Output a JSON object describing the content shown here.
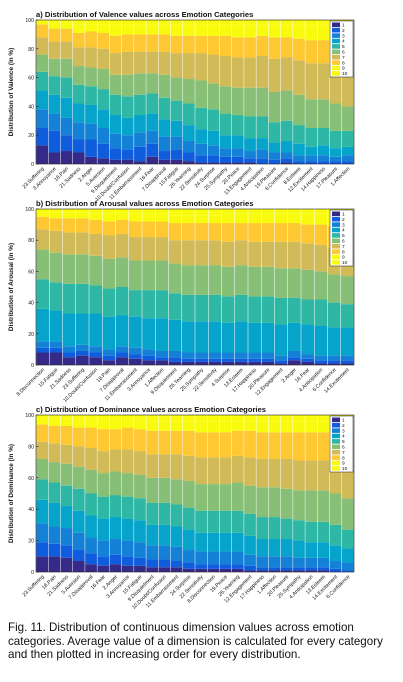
{
  "colors": [
    "#352a87",
    "#0f5cdd",
    "#1481d6",
    "#06a4ca",
    "#2eb7a4",
    "#87bf77",
    "#d1bb59",
    "#fec832",
    "#f9fb0e",
    "#f9fb0e"
  ],
  "legend_labels": [
    "1",
    "2",
    "3",
    "4",
    "5",
    "6",
    "7",
    "8",
    "9",
    "10"
  ],
  "caption": "Fig. 11. Distribution of continuous dimension values across emotion categories. Average value of a dimension is calculated for every category and then plotted in increasing order for every distribution.",
  "chart_data": [
    {
      "type": "bar",
      "stacked": true,
      "title": "a) Distribution of Valence values across Emotion Categories",
      "ylabel": "Distribution of Valence (in %)",
      "ylim": [
        0,
        100
      ],
      "yticks": [
        0,
        20,
        40,
        60,
        80,
        100
      ],
      "legend_position": "top-right",
      "categories": [
        "23.Suffering",
        "3.Annoyance",
        "18.Pain",
        "21.Sadness",
        "2.Anger",
        "5.Aversion",
        "9.Disquietment",
        "10.Doubt/Confusion",
        "11.Embarrassment",
        "16.Fear",
        "7.Disapproval",
        "15.Fatigue",
        "26.Yearning",
        "22.Sensitivity",
        "24.Surprise",
        "25.Sympathy",
        "20.Peace",
        "13.Engagement",
        "4.Anticipation",
        "19.Pleasure",
        "6.Confidence",
        "8.Esteem",
        "12.Excitement",
        "14.Happiness",
        "17.Pleasure",
        "1.Affection"
      ],
      "series": [
        {
          "name": "1",
          "values": [
            13,
            8,
            9,
            8,
            5,
            4,
            3,
            3,
            2,
            5,
            3,
            3,
            2,
            1,
            1,
            1,
            1,
            1,
            0,
            0,
            1,
            0,
            0,
            0,
            0,
            0
          ]
        },
        {
          "name": "2",
          "values": [
            12,
            15,
            11,
            9,
            12,
            10,
            8,
            7,
            10,
            9,
            6,
            7,
            6,
            5,
            5,
            4,
            4,
            3,
            4,
            3,
            3,
            2,
            2,
            2,
            2,
            2
          ]
        },
        {
          "name": "3",
          "values": [
            13,
            12,
            12,
            12,
            11,
            11,
            10,
            10,
            10,
            9,
            10,
            9,
            8,
            8,
            7,
            6,
            6,
            5,
            6,
            5,
            4,
            4,
            4,
            4,
            3,
            4
          ]
        },
        {
          "name": "4",
          "values": [
            13,
            13,
            14,
            13,
            13,
            13,
            13,
            12,
            12,
            12,
            12,
            11,
            11,
            10,
            10,
            9,
            9,
            9,
            8,
            7,
            8,
            8,
            6,
            7,
            6,
            6
          ]
        },
        {
          "name": "5",
          "values": [
            13,
            13,
            14,
            13,
            13,
            14,
            14,
            15,
            14,
            14,
            15,
            14,
            15,
            15,
            15,
            15,
            14,
            15,
            15,
            14,
            14,
            13,
            13,
            12,
            12,
            11
          ]
        },
        {
          "name": "6",
          "values": [
            12,
            12,
            13,
            13,
            13,
            14,
            14,
            15,
            15,
            14,
            16,
            16,
            17,
            19,
            18,
            19,
            19,
            20,
            20,
            21,
            21,
            21,
            20,
            20,
            19,
            17
          ]
        },
        {
          "name": "7",
          "values": [
            12,
            12,
            12,
            13,
            14,
            14,
            15,
            16,
            15,
            15,
            16,
            17,
            18,
            19,
            20,
            21,
            21,
            21,
            22,
            23,
            23,
            24,
            25,
            25,
            26,
            27
          ]
        },
        {
          "name": "8",
          "values": [
            9,
            9,
            9,
            10,
            11,
            11,
            12,
            12,
            12,
            12,
            12,
            12,
            12,
            12,
            13,
            14,
            14,
            14,
            14,
            15,
            14,
            15,
            16,
            16,
            17,
            18
          ]
        },
        {
          "name": "9",
          "values": [
            2,
            4,
            4,
            6,
            5,
            6,
            7,
            7,
            7,
            7,
            7,
            8,
            8,
            8,
            8,
            8,
            9,
            9,
            8,
            9,
            9,
            9,
            10,
            10,
            11,
            11
          ]
        },
        {
          "name": "10",
          "values": [
            1,
            2,
            2,
            3,
            3,
            3,
            4,
            3,
            3,
            3,
            3,
            3,
            3,
            3,
            3,
            3,
            3,
            3,
            3,
            3,
            3,
            4,
            4,
            4,
            4,
            4
          ]
        }
      ]
    },
    {
      "type": "bar",
      "stacked": true,
      "title": "b) Distribution of Arousal values across Emotion Categories",
      "ylabel": "Distribution of Arousal (in %)",
      "ylim": [
        0,
        100
      ],
      "yticks": [
        0,
        20,
        40,
        60,
        80,
        100
      ],
      "legend_position": "top-right",
      "categories": [
        "8.Disconnection",
        "15.Fatigue",
        "21.Sadness",
        "23.Suffering",
        "10.Doubt/Confusion",
        "18.Pain",
        "7.Disapproval",
        "11.Embarrassment",
        "3.Annoyance",
        "1.Affection",
        "9.Disquietment",
        "26.Yearning",
        "25.Sympathy",
        "22.Sensitivity",
        "4.Surprise",
        "13.Esteem",
        "17.Happiness",
        "20.Pleasure",
        "12.Engagement",
        "2.Anger",
        "16.Fear",
        "4.Anticipation",
        "6.Confidence",
        "14.Excitement"
      ],
      "series": [
        {
          "name": "1",
          "values": [
            8,
            8,
            5,
            6,
            5,
            3,
            5,
            4,
            3,
            3,
            2,
            2,
            2,
            2,
            2,
            2,
            2,
            2,
            1,
            3,
            2,
            1,
            1,
            1
          ]
        },
        {
          "name": "2",
          "values": [
            3,
            3,
            3,
            3,
            3,
            3,
            3,
            3,
            3,
            2,
            3,
            2,
            2,
            2,
            2,
            2,
            2,
            2,
            2,
            2,
            2,
            2,
            2,
            2
          ]
        },
        {
          "name": "3",
          "values": [
            4,
            4,
            4,
            4,
            4,
            4,
            4,
            4,
            4,
            4,
            4,
            4,
            4,
            4,
            4,
            4,
            4,
            4,
            3,
            4,
            3,
            3,
            3,
            3
          ]
        },
        {
          "name": "4",
          "values": [
            21,
            20,
            21,
            20,
            21,
            21,
            20,
            20,
            20,
            21,
            20,
            20,
            20,
            20,
            19,
            20,
            19,
            19,
            20,
            18,
            19,
            19,
            18,
            18
          ]
        },
        {
          "name": "5",
          "values": [
            19,
            18,
            19,
            19,
            18,
            18,
            18,
            17,
            18,
            18,
            17,
            17,
            17,
            17,
            17,
            17,
            17,
            17,
            17,
            16,
            16,
            17,
            16,
            15
          ]
        },
        {
          "name": "6",
          "values": [
            19,
            19,
            19,
            19,
            19,
            19,
            19,
            19,
            19,
            19,
            19,
            19,
            19,
            19,
            19,
            19,
            19,
            19,
            19,
            19,
            19,
            18,
            18,
            18
          ]
        },
        {
          "name": "7",
          "values": [
            13,
            14,
            14,
            14,
            14,
            15,
            15,
            15,
            15,
            15,
            15,
            16,
            16,
            16,
            16,
            16,
            16,
            16,
            17,
            17,
            17,
            17,
            17,
            17
          ]
        },
        {
          "name": "8",
          "values": [
            8,
            8,
            9,
            9,
            9,
            9,
            9,
            10,
            10,
            10,
            11,
            11,
            11,
            11,
            12,
            11,
            12,
            12,
            12,
            12,
            12,
            13,
            14,
            14
          ]
        },
        {
          "name": "9",
          "values": [
            3,
            4,
            4,
            4,
            4,
            5,
            5,
            5,
            5,
            5,
            5,
            5,
            5,
            5,
            6,
            6,
            6,
            6,
            6,
            6,
            7,
            7,
            8,
            9
          ]
        },
        {
          "name": "10",
          "values": [
            2,
            2,
            2,
            2,
            3,
            3,
            2,
            3,
            3,
            3,
            4,
            4,
            4,
            4,
            3,
            3,
            3,
            3,
            3,
            3,
            3,
            3,
            3,
            3
          ]
        }
      ]
    },
    {
      "type": "bar",
      "stacked": true,
      "title": "c) Distribution of Dominance values across Emotion Categories",
      "ylabel": "Distribution of Dominance (in %)",
      "ylim": [
        0,
        100
      ],
      "yticks": [
        0,
        20,
        40,
        60,
        80,
        100
      ],
      "legend_position": "top-right",
      "categories": [
        "23.Suffering",
        "18.Pain",
        "21.Sadness",
        "5.Aversion",
        "7.Disapproval",
        "16.Fear",
        "2.Anger",
        "3.Annoyance",
        "15.Fatigue",
        "9.Disquietment",
        "10.Doubt/Confusion",
        "11.Embarrassment",
        "24.Surprise",
        "22.Sensitivity",
        "8.Disconnection",
        "19.Peace",
        "26.Yearning",
        "12.Engagement",
        "17.Happiness",
        "1.Affection",
        "20.Pleasure",
        "25.Sympathy",
        "4.Anticipation",
        "13.Esteem",
        "14.Excitement",
        "6.Confidence"
      ],
      "series": [
        {
          "name": "1",
          "values": [
            10,
            10,
            9,
            7,
            5,
            4,
            5,
            4,
            4,
            3,
            3,
            3,
            2,
            2,
            2,
            2,
            2,
            1,
            1,
            1,
            1,
            1,
            1,
            1,
            0,
            0
          ]
        },
        {
          "name": "2",
          "values": [
            9,
            8,
            8,
            7,
            7,
            6,
            6,
            6,
            5,
            5,
            5,
            4,
            4,
            3,
            3,
            3,
            3,
            3,
            2,
            2,
            2,
            2,
            2,
            2,
            2,
            1
          ]
        },
        {
          "name": "3",
          "values": [
            12,
            11,
            11,
            11,
            10,
            10,
            10,
            10,
            10,
            9,
            9,
            9,
            8,
            8,
            8,
            8,
            8,
            7,
            7,
            7,
            7,
            6,
            6,
            6,
            5,
            5
          ]
        },
        {
          "name": "4",
          "values": [
            15,
            15,
            14,
            14,
            14,
            14,
            14,
            14,
            14,
            13,
            13,
            13,
            13,
            12,
            12,
            12,
            12,
            12,
            11,
            11,
            11,
            11,
            10,
            10,
            10,
            9
          ]
        },
        {
          "name": "5",
          "values": [
            13,
            13,
            13,
            14,
            14,
            14,
            14,
            14,
            14,
            14,
            14,
            14,
            14,
            14,
            14,
            14,
            14,
            14,
            14,
            14,
            13,
            13,
            13,
            13,
            13,
            12
          ]
        },
        {
          "name": "6",
          "values": [
            13,
            13,
            14,
            14,
            15,
            15,
            15,
            15,
            15,
            16,
            16,
            16,
            17,
            17,
            17,
            17,
            18,
            18,
            19,
            19,
            19,
            19,
            20,
            20,
            20,
            20
          ]
        },
        {
          "name": "7",
          "values": [
            11,
            12,
            12,
            13,
            14,
            14,
            14,
            15,
            15,
            15,
            15,
            16,
            16,
            17,
            17,
            17,
            17,
            18,
            18,
            18,
            19,
            19,
            19,
            19,
            20,
            21
          ]
        },
        {
          "name": "8",
          "values": [
            11,
            11,
            12,
            12,
            13,
            14,
            13,
            14,
            14,
            15,
            15,
            15,
            16,
            16,
            16,
            16,
            16,
            17,
            17,
            17,
            17,
            18,
            18,
            18,
            19,
            20
          ]
        },
        {
          "name": "9",
          "values": [
            4,
            5,
            5,
            5,
            5,
            6,
            6,
            5,
            6,
            6,
            6,
            6,
            6,
            7,
            7,
            7,
            6,
            6,
            7,
            7,
            7,
            7,
            7,
            7,
            7,
            8
          ]
        },
        {
          "name": "10",
          "values": [
            2,
            2,
            2,
            3,
            3,
            3,
            3,
            3,
            3,
            4,
            4,
            4,
            4,
            4,
            4,
            4,
            4,
            4,
            4,
            4,
            4,
            4,
            4,
            4,
            4,
            4
          ]
        }
      ]
    }
  ]
}
